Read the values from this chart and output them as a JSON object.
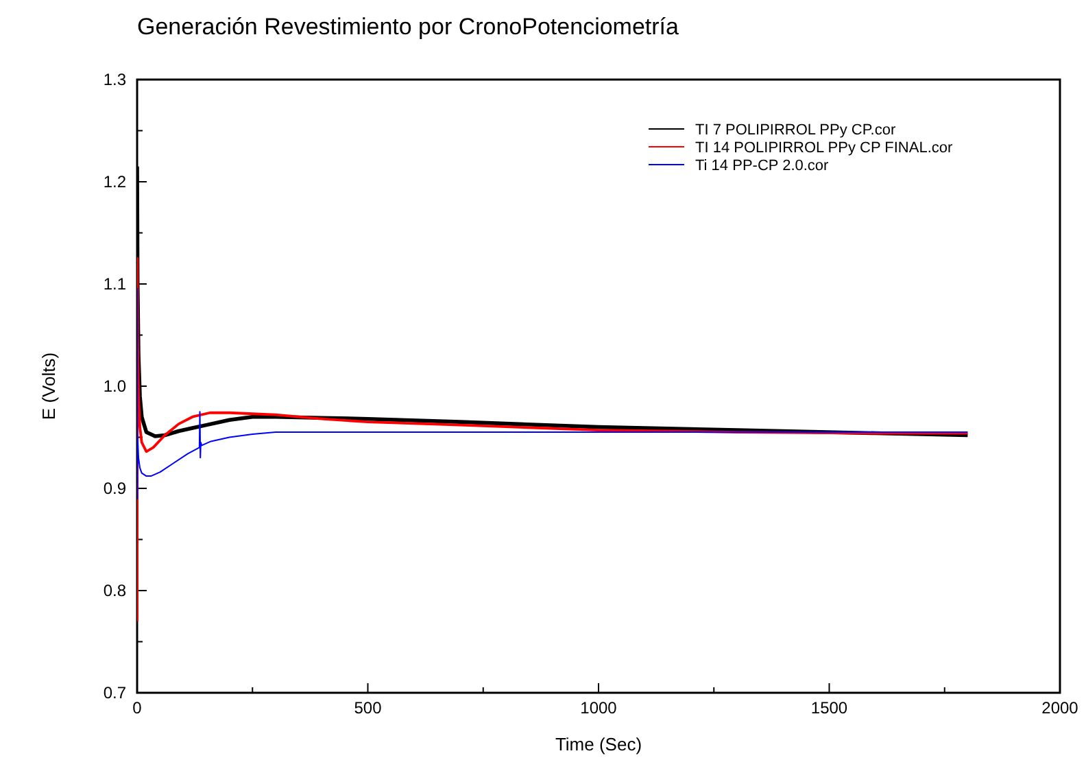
{
  "chart_data": {
    "type": "line",
    "title": "Generación Revestimiento por CronoPotenciometría",
    "xlabel": "Time (Sec)",
    "ylabel": "E (Volts)",
    "xlim": [
      0,
      2000
    ],
    "xticks": [
      0,
      {
        "value": 250,
        "label": null
      },
      500,
      {
        "value": 750,
        "label": null
      },
      1000,
      {
        "value": 1250,
        "label": null
      },
      1500,
      {
        "value": 1750,
        "label": null
      },
      2000
    ],
    "ylim": [
      0.7,
      1.3
    ],
    "yticks": [
      0.7,
      {
        "value": 0.75,
        "label": null
      },
      0.8,
      {
        "value": 0.85,
        "label": null
      },
      0.9,
      {
        "value": 0.95,
        "label": null
      },
      {
        "value": 1.0,
        "label": "1.0"
      },
      {
        "value": 1.05,
        "label": null
      },
      1.1,
      {
        "value": 1.15,
        "label": null
      },
      1.2,
      {
        "value": 1.25,
        "label": null
      },
      1.3
    ],
    "grid": false,
    "legend": "top right",
    "marker": "none",
    "line_style": "solid",
    "series": [
      {
        "name": "TI 7 POLIPIRROL PPy CP.cor",
        "color": "#000000",
        "x": [
          0,
          1,
          3,
          6,
          10,
          20,
          39,
          60,
          90,
          120,
          150,
          200,
          250,
          300,
          400,
          500,
          700,
          1000,
          1300,
          1600,
          1800
        ],
        "values": [
          1.215,
          1.1,
          1.03,
          0.99,
          0.97,
          0.955,
          0.951,
          0.952,
          0.956,
          0.959,
          0.962,
          0.967,
          0.97,
          0.97,
          0.969,
          0.968,
          0.965,
          0.96,
          0.957,
          0.954,
          0.952
        ]
      },
      {
        "name": "TI 14 POLIPIRROL PPy CP FINAL.cor",
        "color": "#ff0000",
        "x": [
          0,
          0.5,
          1,
          3,
          6,
          10,
          20,
          35,
          60,
          90,
          120,
          158,
          200,
          250,
          300,
          400,
          500,
          700,
          1000,
          1300,
          1600,
          1800
        ],
        "values": [
          0.77,
          1.125,
          1.05,
          0.99,
          0.96,
          0.945,
          0.936,
          0.94,
          0.952,
          0.963,
          0.97,
          0.974,
          0.974,
          0.973,
          0.972,
          0.968,
          0.965,
          0.962,
          0.957,
          0.955,
          0.954,
          0.954
        ]
      },
      {
        "name": "Ti 14 PP-CP 2.0.cor",
        "color": "#0000ff",
        "x": [
          0,
          0.5,
          1,
          3,
          6,
          10,
          20,
          30,
          50,
          80,
          110,
          135,
          136,
          137,
          138,
          140,
          160,
          200,
          250,
          300,
          400,
          600,
          1000,
          1400,
          1800
        ],
        "values": [
          1.096,
          0.89,
          0.95,
          0.93,
          0.92,
          0.915,
          0.912,
          0.912,
          0.916,
          0.925,
          0.934,
          0.94,
          0.975,
          0.93,
          0.945,
          0.942,
          0.946,
          0.95,
          0.953,
          0.955,
          0.955,
          0.955,
          0.955,
          0.955,
          0.955
        ]
      }
    ]
  }
}
